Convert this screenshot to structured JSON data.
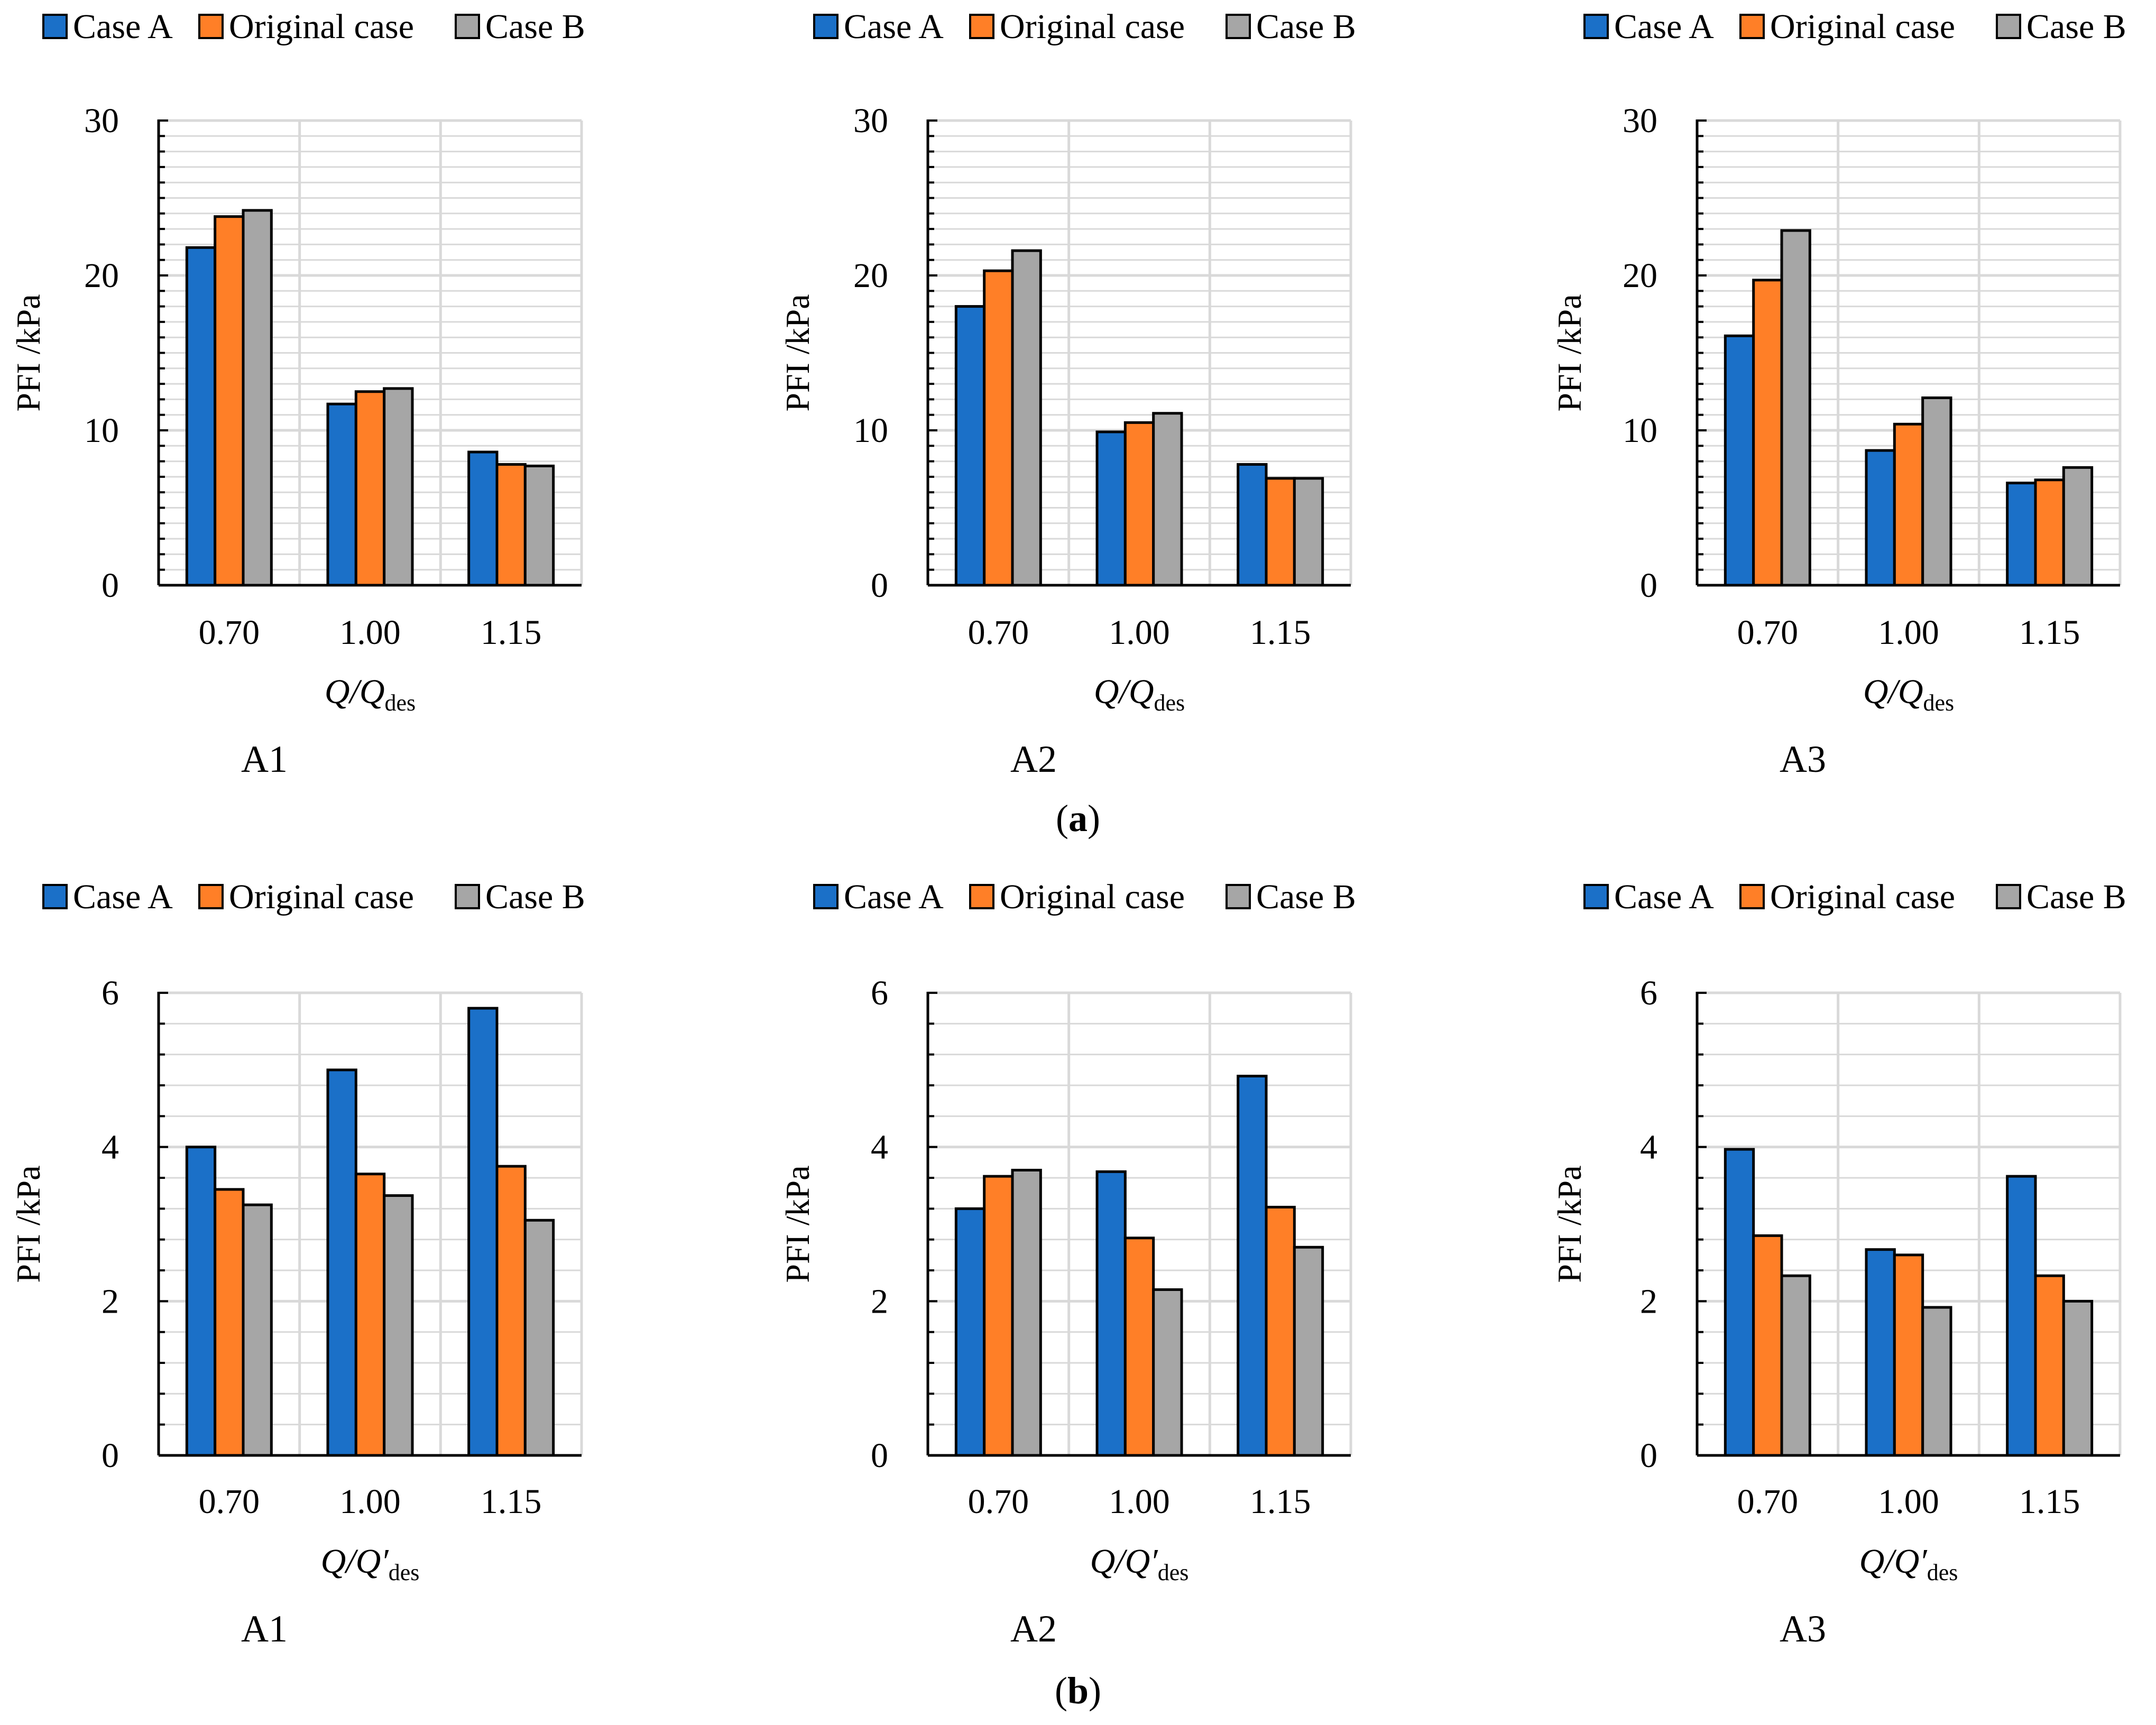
{
  "figure": {
    "caption_a": "a",
    "caption_b": "b"
  },
  "colors": {
    "case_a": "#1B70C8",
    "original": "#FF7F27",
    "case_b": "#A6A6A6",
    "grid": "#D9D9D9"
  },
  "chart_data": [
    {
      "type": "bar",
      "panel": "a",
      "title": "A1",
      "categories": [
        "0.70",
        "1.00",
        "1.15"
      ],
      "series": [
        {
          "name": "Case A",
          "values": [
            21.8,
            11.7,
            8.6
          ]
        },
        {
          "name": "Original case",
          "values": [
            23.8,
            12.5,
            7.8
          ]
        },
        {
          "name": "Case B",
          "values": [
            24.2,
            12.7,
            7.7
          ]
        }
      ],
      "ylabel": "PFI /kPa",
      "xlabel": "Q/Qdes",
      "xlabel_main": "Q/Q",
      "xlabel_sub": "des",
      "ylim": [
        0,
        30
      ],
      "yticks": [
        "0",
        "10",
        "20",
        "30"
      ],
      "legend": "top",
      "grid": true
    },
    {
      "type": "bar",
      "panel": "a",
      "title": "A2",
      "categories": [
        "0.70",
        "1.00",
        "1.15"
      ],
      "series": [
        {
          "name": "Case A",
          "values": [
            18.0,
            9.9,
            7.8
          ]
        },
        {
          "name": "Original case",
          "values": [
            20.3,
            10.5,
            6.9
          ]
        },
        {
          "name": "Case B",
          "values": [
            21.6,
            11.1,
            6.9
          ]
        }
      ],
      "ylabel": "PFI /kPa",
      "xlabel": "Q/Qdes",
      "xlabel_main": "Q/Q",
      "xlabel_sub": "des",
      "ylim": [
        0,
        30
      ],
      "yticks": [
        "0",
        "10",
        "20",
        "30"
      ],
      "legend": "top",
      "grid": true
    },
    {
      "type": "bar",
      "panel": "a",
      "title": "A3",
      "categories": [
        "0.70",
        "1.00",
        "1.15"
      ],
      "series": [
        {
          "name": "Case A",
          "values": [
            16.1,
            8.7,
            6.6
          ]
        },
        {
          "name": "Original case",
          "values": [
            19.7,
            10.4,
            6.8
          ]
        },
        {
          "name": "Case B",
          "values": [
            22.9,
            12.1,
            7.6
          ]
        }
      ],
      "ylabel": "PFI /kPa",
      "xlabel": "Q/Qdes",
      "xlabel_main": "Q/Q",
      "xlabel_sub": "des",
      "ylim": [
        0,
        30
      ],
      "yticks": [
        "0",
        "10",
        "20",
        "30"
      ],
      "legend": "top",
      "grid": true
    },
    {
      "type": "bar",
      "panel": "b",
      "title": "A1",
      "categories": [
        "0.70",
        "1.00",
        "1.15"
      ],
      "series": [
        {
          "name": "Case A",
          "values": [
            4.0,
            5.0,
            5.8
          ]
        },
        {
          "name": "Original case",
          "values": [
            3.45,
            3.65,
            3.75
          ]
        },
        {
          "name": "Case B",
          "values": [
            3.25,
            3.37,
            3.05
          ]
        }
      ],
      "ylabel": "PFI /kPa",
      "xlabel": "Q/Q′des",
      "xlabel_main": "Q/Q′",
      "xlabel_sub": "des",
      "ylim": [
        0,
        6
      ],
      "yticks": [
        "0",
        "2",
        "4",
        "6"
      ],
      "legend": "top",
      "grid": true
    },
    {
      "type": "bar",
      "panel": "b",
      "title": "A2",
      "categories": [
        "0.70",
        "1.00",
        "1.15"
      ],
      "series": [
        {
          "name": "Case A",
          "values": [
            3.2,
            3.68,
            4.92
          ]
        },
        {
          "name": "Original case",
          "values": [
            3.62,
            2.82,
            3.22
          ]
        },
        {
          "name": "Case B",
          "values": [
            3.7,
            2.15,
            2.7
          ]
        }
      ],
      "ylabel": "PFI /kPa",
      "xlabel": "Q/Q′des",
      "xlabel_main": "Q/Q′",
      "xlabel_sub": "des",
      "ylim": [
        0,
        6
      ],
      "yticks": [
        "0",
        "2",
        "4",
        "6"
      ],
      "legend": "top",
      "grid": true
    },
    {
      "type": "bar",
      "panel": "b",
      "title": "A3",
      "categories": [
        "0.70",
        "1.00",
        "1.15"
      ],
      "series": [
        {
          "name": "Case A",
          "values": [
            3.97,
            2.67,
            3.62
          ]
        },
        {
          "name": "Original case",
          "values": [
            2.85,
            2.6,
            2.33
          ]
        },
        {
          "name": "Case B",
          "values": [
            2.33,
            1.92,
            2.0
          ]
        }
      ],
      "ylabel": "PFI /kPa",
      "xlabel": "Q/Q′des",
      "xlabel_main": "Q/Q′",
      "xlabel_sub": "des",
      "ylim": [
        0,
        6
      ],
      "yticks": [
        "0",
        "2",
        "4",
        "6"
      ],
      "legend": "top",
      "grid": true
    }
  ]
}
